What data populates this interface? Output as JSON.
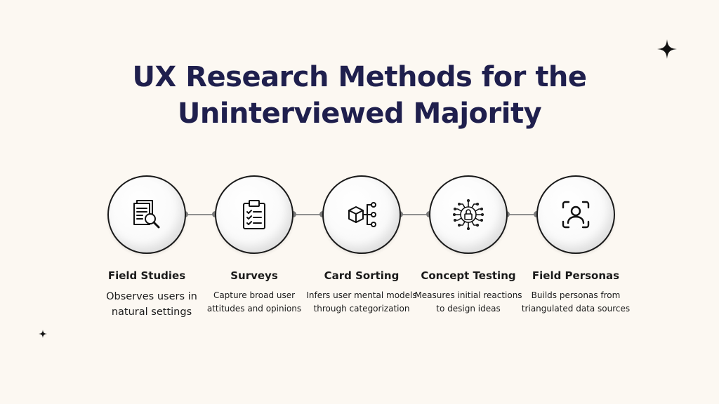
{
  "title": {
    "line1": "UX Research Methods for the",
    "line2": "Uninterviewed Majority"
  },
  "steps": [
    {
      "title": "Field Studies",
      "description": "Observes users in natural settings",
      "icon": "document-search-icon"
    },
    {
      "title": "Surveys",
      "description": "Capture broad user attitudes and opinions",
      "icon": "clipboard-checklist-icon"
    },
    {
      "title": "Card Sorting",
      "description": "Infers user mental models through categorization",
      "icon": "box-branch-icon"
    },
    {
      "title": "Concept Testing",
      "description": "Measures initial reactions to design ideas",
      "icon": "circuit-lock-icon"
    },
    {
      "title": "Field Personas",
      "description": "Builds personas from triangulated data sources",
      "icon": "person-frame-icon"
    }
  ],
  "colors": {
    "background": "#fcf8f2",
    "title": "#1f1f4d",
    "connector": "#8f8f8f"
  }
}
